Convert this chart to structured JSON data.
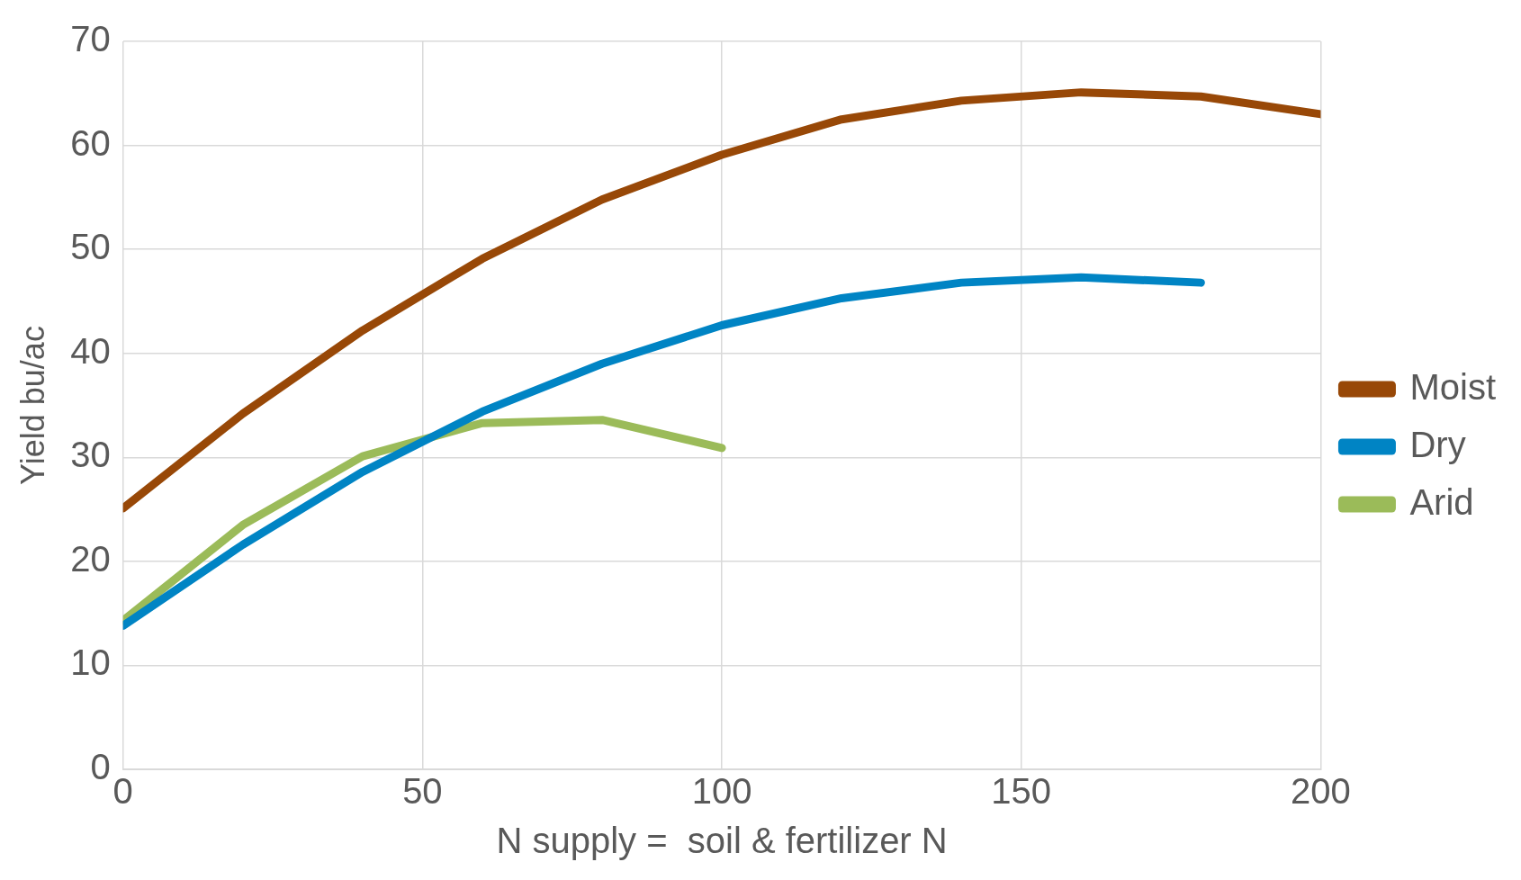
{
  "chart_data": {
    "type": "line",
    "xlabel": "N supply =  soil & fertilizer N",
    "ylabel": "Yield bu/ac",
    "x": [
      0,
      20,
      40,
      60,
      80,
      100,
      120,
      140,
      160,
      180,
      200
    ],
    "series": [
      {
        "name": "Moist",
        "color": "#984807",
        "values": [
          25.1,
          34.2,
          42.2,
          49.1,
          54.8,
          59.1,
          62.5,
          64.3,
          65.1,
          64.7,
          63.0
        ]
      },
      {
        "name": "Dry",
        "color": "#0084c4",
        "values": [
          13.8,
          21.6,
          28.6,
          34.4,
          39.0,
          42.7,
          45.3,
          46.8,
          47.3,
          46.8,
          null
        ]
      },
      {
        "name": "Arid",
        "color": "#9bbb59",
        "values": [
          14.3,
          23.5,
          30.1,
          33.3,
          33.6,
          30.9,
          null,
          null,
          null,
          null,
          null
        ]
      }
    ],
    "xlim": [
      0,
      200
    ],
    "xticks": [
      0,
      50,
      100,
      150,
      200
    ],
    "ylim": [
      0,
      70
    ],
    "yticks": [
      0,
      10,
      20,
      30,
      40,
      50,
      60,
      70
    ],
    "grid": true,
    "legend": "right",
    "marker": "none",
    "line_style": "solid"
  }
}
